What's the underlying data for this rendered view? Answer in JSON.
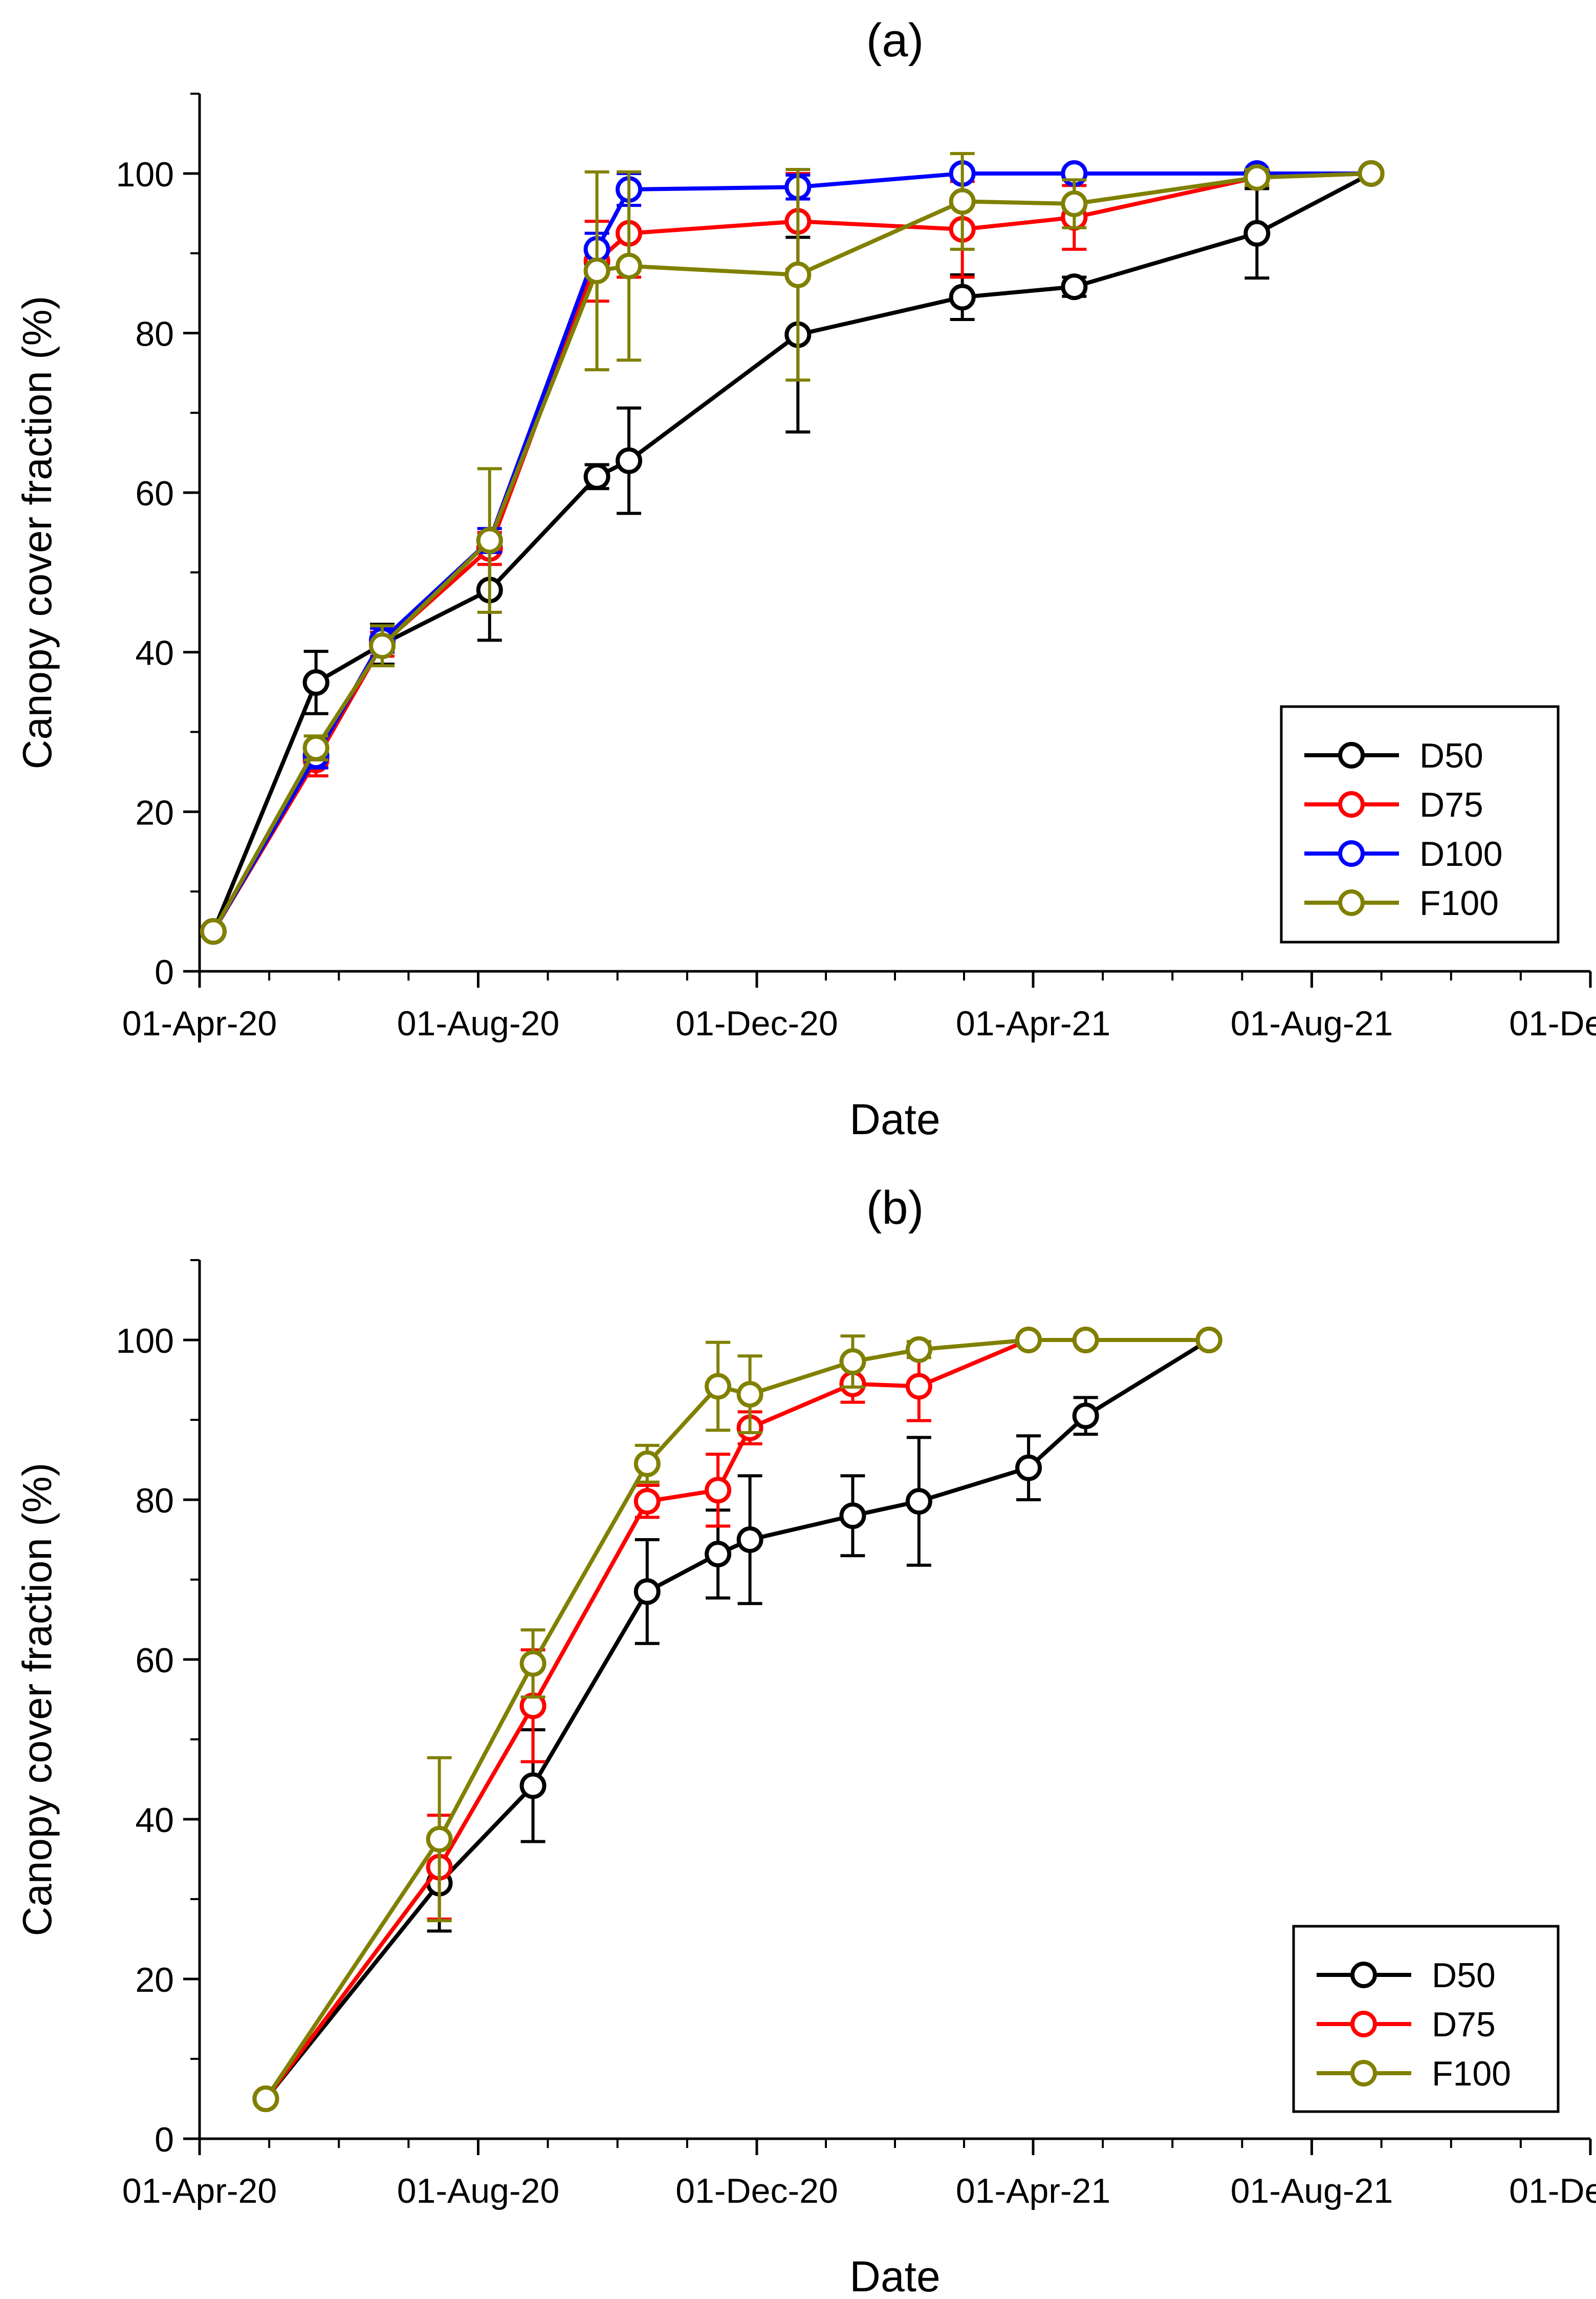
{
  "chart_data": [
    {
      "type": "line",
      "title": "(a)",
      "xlabel": "Date",
      "ylabel": "Canopy cover fraction (%)",
      "ylim": [
        0,
        110
      ],
      "yticks": [
        0,
        20,
        40,
        60,
        80,
        100
      ],
      "xlim": [
        "2020-04-01",
        "2021-12-01"
      ],
      "xticks": [
        {
          "label": "01-Apr-20",
          "date": "2020-04-01"
        },
        {
          "label": "01-Aug-20",
          "date": "2020-08-01"
        },
        {
          "label": "01-Dec-20",
          "date": "2020-12-01"
        },
        {
          "label": "01-Apr-21",
          "date": "2021-04-01"
        },
        {
          "label": "01-Aug-21",
          "date": "2021-08-01"
        },
        {
          "label": "01-Dec-21",
          "date": "2021-12-01"
        }
      ],
      "legend_position": "bottom-right",
      "series": [
        {
          "name": "D50",
          "color": "#000000",
          "points": [
            {
              "date": "2020-04-07",
              "y": 5,
              "err": 0
            },
            {
              "date": "2020-05-22",
              "y": 36.2,
              "err": 3.9
            },
            {
              "date": "2020-06-20",
              "y": 41,
              "err": 2.5
            },
            {
              "date": "2020-08-06",
              "y": 47.8,
              "err": 6.3
            },
            {
              "date": "2020-09-22",
              "y": 62,
              "err": 1.5
            },
            {
              "date": "2020-10-06",
              "y": 64,
              "err": 6.6
            },
            {
              "date": "2020-12-19",
              "y": 79.8,
              "err": 12.2
            },
            {
              "date": "2021-03-01",
              "y": 84.5,
              "err": 2.8
            },
            {
              "date": "2021-04-19",
              "y": 85.8,
              "err": 1.2
            },
            {
              "date": "2021-07-08",
              "y": 92.5,
              "err": 5.6
            },
            {
              "date": "2021-08-27",
              "y": 100,
              "err": 0
            }
          ]
        },
        {
          "name": "D75",
          "color": "#ff0000",
          "points": [
            {
              "date": "2020-04-07",
              "y": 5,
              "err": 0
            },
            {
              "date": "2020-05-22",
              "y": 26.5,
              "err": 2
            },
            {
              "date": "2020-06-20",
              "y": 41,
              "err": 1.5
            },
            {
              "date": "2020-08-06",
              "y": 53,
              "err": 2
            },
            {
              "date": "2020-09-22",
              "y": 89,
              "err": 5
            },
            {
              "date": "2020-10-06",
              "y": 92.5,
              "err": 5.5
            },
            {
              "date": "2020-12-19",
              "y": 94,
              "err": 6
            },
            {
              "date": "2021-03-01",
              "y": 93,
              "err": 6
            },
            {
              "date": "2021-04-19",
              "y": 94.5,
              "err": 4
            },
            {
              "date": "2021-07-08",
              "y": 99.5,
              "err": 1
            },
            {
              "date": "2021-08-27",
              "y": 100,
              "err": 0
            }
          ]
        },
        {
          "name": "D100",
          "color": "#0000ff",
          "points": [
            {
              "date": "2020-04-07",
              "y": 5,
              "err": 0
            },
            {
              "date": "2020-05-22",
              "y": 27,
              "err": 1.5
            },
            {
              "date": "2020-06-20",
              "y": 41.5,
              "err": 1.5
            },
            {
              "date": "2020-08-06",
              "y": 54,
              "err": 1.5
            },
            {
              "date": "2020-09-22",
              "y": 90.5,
              "err": 2
            },
            {
              "date": "2020-10-06",
              "y": 98,
              "err": 2
            },
            {
              "date": "2020-12-19",
              "y": 98.3,
              "err": 1.5
            },
            {
              "date": "2021-03-01",
              "y": 100,
              "err": 0
            },
            {
              "date": "2021-04-19",
              "y": 100,
              "err": 0
            },
            {
              "date": "2021-07-08",
              "y": 100,
              "err": 0
            },
            {
              "date": "2021-08-27",
              "y": 100,
              "err": 0
            }
          ]
        },
        {
          "name": "F100",
          "color": "#808000",
          "points": [
            {
              "date": "2020-04-07",
              "y": 5,
              "err": 0
            },
            {
              "date": "2020-05-22",
              "y": 28,
              "err": 1.5
            },
            {
              "date": "2020-06-20",
              "y": 40.8,
              "err": 2.5
            },
            {
              "date": "2020-08-06",
              "y": 54,
              "err": 9
            },
            {
              "date": "2020-09-22",
              "y": 87.8,
              "err": 12.4
            },
            {
              "date": "2020-10-06",
              "y": 88.4,
              "err": 11.8
            },
            {
              "date": "2020-12-19",
              "y": 87.3,
              "err": 13.2
            },
            {
              "date": "2021-03-01",
              "y": 96.5,
              "err": 6
            },
            {
              "date": "2021-04-19",
              "y": 96.2,
              "err": 3
            },
            {
              "date": "2021-07-08",
              "y": 99.5,
              "err": 1
            },
            {
              "date": "2021-08-27",
              "y": 100,
              "err": 0
            }
          ]
        }
      ]
    },
    {
      "type": "line",
      "title": "(b)",
      "xlabel": "Date",
      "ylabel": "Canopy cover fraction (%)",
      "ylim": [
        0,
        110
      ],
      "yticks": [
        0,
        20,
        40,
        60,
        80,
        100
      ],
      "xlim": [
        "2020-04-01",
        "2021-12-01"
      ],
      "xticks": [
        {
          "label": "01-Apr-20",
          "date": "2020-04-01"
        },
        {
          "label": "01-Aug-20",
          "date": "2020-08-01"
        },
        {
          "label": "01-Dec-20",
          "date": "2020-12-01"
        },
        {
          "label": "01-Apr-21",
          "date": "2021-04-01"
        },
        {
          "label": "01-Aug-21",
          "date": "2021-08-01"
        },
        {
          "label": "01-Dec-21",
          "date": "2021-12-01"
        }
      ],
      "legend_position": "bottom-right",
      "series": [
        {
          "name": "D50",
          "color": "#000000",
          "points": [
            {
              "date": "2020-04-30",
              "y": 5,
              "err": 0
            },
            {
              "date": "2020-07-15",
              "y": 32,
              "err": 6
            },
            {
              "date": "2020-08-25",
              "y": 44.2,
              "err": 7
            },
            {
              "date": "2020-10-14",
              "y": 68.5,
              "err": 6.5
            },
            {
              "date": "2020-11-14",
              "y": 73.2,
              "err": 5.5
            },
            {
              "date": "2020-11-28",
              "y": 75,
              "err": 8
            },
            {
              "date": "2021-01-12",
              "y": 78,
              "err": 5
            },
            {
              "date": "2021-02-10",
              "y": 79.8,
              "err": 8
            },
            {
              "date": "2021-03-30",
              "y": 84,
              "err": 4
            },
            {
              "date": "2021-04-24",
              "y": 90.5,
              "err": 2.3
            },
            {
              "date": "2021-06-17",
              "y": 100,
              "err": 0
            }
          ]
        },
        {
          "name": "D75",
          "color": "#ff0000",
          "points": [
            {
              "date": "2020-04-30",
              "y": 5,
              "err": 0
            },
            {
              "date": "2020-07-15",
              "y": 34,
              "err": 6.5
            },
            {
              "date": "2020-08-25",
              "y": 54.2,
              "err": 7
            },
            {
              "date": "2020-10-14",
              "y": 79.8,
              "err": 2
            },
            {
              "date": "2020-11-14",
              "y": 81.2,
              "err": 4.5
            },
            {
              "date": "2020-11-28",
              "y": 89,
              "err": 2
            },
            {
              "date": "2021-01-12",
              "y": 94.5,
              "err": 2.3
            },
            {
              "date": "2021-02-10",
              "y": 94.2,
              "err": 4.3
            },
            {
              "date": "2021-03-30",
              "y": 100,
              "err": 0
            },
            {
              "date": "2021-04-24",
              "y": 100,
              "err": 0
            },
            {
              "date": "2021-06-17",
              "y": 100,
              "err": 0
            }
          ]
        },
        {
          "name": "F100",
          "color": "#808000",
          "points": [
            {
              "date": "2020-04-30",
              "y": 5,
              "err": 0
            },
            {
              "date": "2020-07-15",
              "y": 37.5,
              "err": 10.2
            },
            {
              "date": "2020-08-25",
              "y": 59.5,
              "err": 4.2
            },
            {
              "date": "2020-10-14",
              "y": 84.5,
              "err": 2.3
            },
            {
              "date": "2020-11-14",
              "y": 94.2,
              "err": 5.5
            },
            {
              "date": "2020-11-28",
              "y": 93.2,
              "err": 4.8
            },
            {
              "date": "2021-01-12",
              "y": 97.3,
              "err": 3.2
            },
            {
              "date": "2021-02-10",
              "y": 98.8,
              "err": 1
            },
            {
              "date": "2021-03-30",
              "y": 100,
              "err": 0
            },
            {
              "date": "2021-04-24",
              "y": 100,
              "err": 0
            },
            {
              "date": "2021-06-17",
              "y": 100,
              "err": 0
            }
          ]
        }
      ]
    }
  ]
}
